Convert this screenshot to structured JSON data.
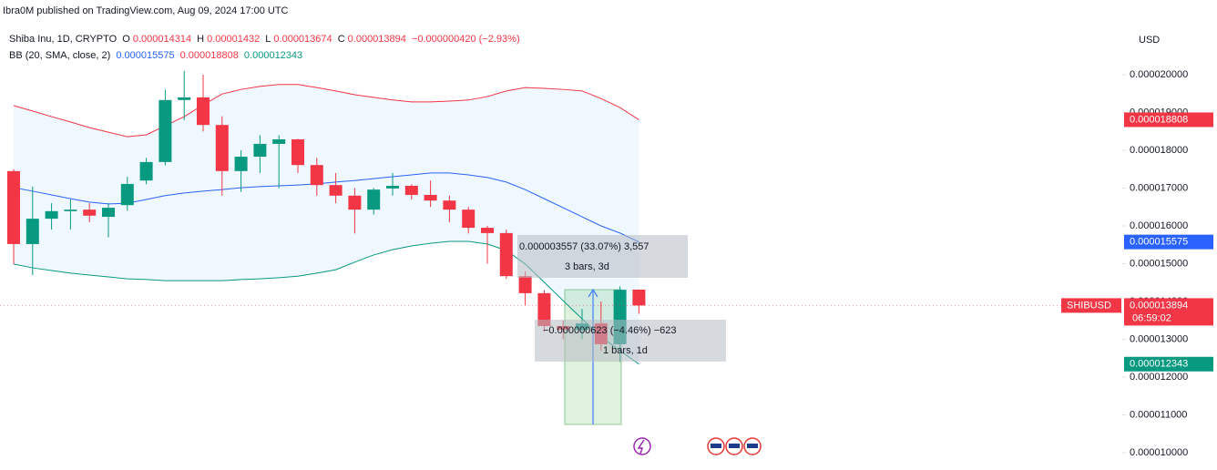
{
  "header": "Ibra0M published on TradingView.com, Aug 09, 2024 17:00 UTC",
  "chart_data": {
    "type": "candlestick",
    "symbol": "Shiba Inu, 1D, CRYPTO",
    "ohlc_letters": [
      "O",
      "H",
      "L",
      "C"
    ],
    "change": "−0.000000420 (−2.93%)",
    "indicator": "BB (20, SMA, close, 2)",
    "currency": "USD",
    "up_color": "#089981",
    "down_color": "#f23645",
    "open": [
      1.745e-05,
      1.552e-05,
      1.619e-05,
      1.639e-05,
      1.643e-05,
      1.624e-05,
      1.655e-05,
      1.72e-05,
      1.769e-05,
      1.933e-05,
      1.94e-05,
      1.867e-05,
      1.745e-05,
      1.783e-05,
      1.817e-05,
      1.829e-05,
      1.761e-05,
      1.708e-05,
      1.68e-05,
      1.643e-05,
      1.699e-05,
      1.706e-05,
      1.682e-05,
      1.667e-05,
      1.643e-05,
      1.595e-05,
      1.581e-05,
      1.467e-05,
      1.422e-05,
      1.335e-05,
      1.325e-05,
      1.342e-05,
      1.287e-05,
      1.4314e-05
    ],
    "high": [
      1.75e-05,
      1.704e-05,
      1.66e-05,
      1.67e-05,
      1.66e-05,
      1.66e-05,
      1.73e-05,
      1.78e-05,
      1.96e-05,
      2.01e-05,
      2e-05,
      1.89e-05,
      1.8e-05,
      1.84e-05,
      1.84e-05,
      1.83e-05,
      1.78e-05,
      1.74e-05,
      1.7e-05,
      1.7e-05,
      1.74e-05,
      1.71e-05,
      1.72e-05,
      1.68e-05,
      1.65e-05,
      1.6e-05,
      1.59e-05,
      1.48e-05,
      1.43e-05,
      1.35e-05,
      1.38e-05,
      1.4e-05,
      1.44e-05,
      1.432e-05
    ],
    "low": [
      1.499e-05,
      1.47e-05,
      1.59e-05,
      1.59e-05,
      1.61e-05,
      1.57e-05,
      1.64e-05,
      1.71e-05,
      1.76e-05,
      1.88e-05,
      1.85e-05,
      1.68e-05,
      1.69e-05,
      1.74e-05,
      1.7e-05,
      1.74e-05,
      1.68e-05,
      1.66e-05,
      1.58e-05,
      1.63e-05,
      1.68e-05,
      1.67e-05,
      1.65e-05,
      1.61e-05,
      1.58e-05,
      1.5e-05,
      1.46e-05,
      1.39e-05,
      1.32e-05,
      1.3e-05,
      1.3e-05,
      1.27e-05,
      1.24e-05,
      1.3674e-05
    ],
    "close": [
      1.552e-05,
      1.619e-05,
      1.639e-05,
      1.643e-05,
      1.627e-05,
      1.648e-05,
      1.711e-05,
      1.769e-05,
      1.933e-05,
      1.94e-05,
      1.867e-05,
      1.745e-05,
      1.783e-05,
      1.817e-05,
      1.829e-05,
      1.761e-05,
      1.708e-05,
      1.68e-05,
      1.643e-05,
      1.696e-05,
      1.706e-05,
      1.682e-05,
      1.667e-05,
      1.643e-05,
      1.595e-05,
      1.581e-05,
      1.467e-05,
      1.422e-05,
      1.335e-05,
      1.325e-05,
      1.342e-05,
      1.287e-05,
      1.431e-05,
      1.3894e-05
    ],
    "overlays": [
      {
        "color": "#2962ff",
        "values": [
          1.701e-05,
          1.692e-05,
          1.682e-05,
          1.672e-05,
          1.663e-05,
          1.658e-05,
          1.66e-05,
          1.67e-05,
          1.68e-05,
          1.687e-05,
          1.692e-05,
          1.696e-05,
          1.701e-05,
          1.704e-05,
          1.706e-05,
          1.708e-05,
          1.711e-05,
          1.716e-05,
          1.72e-05,
          1.725e-05,
          1.73e-05,
          1.735e-05,
          1.74e-05,
          1.74e-05,
          1.735e-05,
          1.728e-05,
          1.716e-05,
          1.696e-05,
          1.672e-05,
          1.648e-05,
          1.624e-05,
          1.6e-05,
          1.581e-05,
          1.5575e-05
        ]
      },
      {
        "color": "#f23645",
        "values": [
          1.918e-05,
          1.904e-05,
          1.889e-05,
          1.875e-05,
          1.86e-05,
          1.848e-05,
          1.836e-05,
          1.841e-05,
          1.865e-05,
          1.889e-05,
          1.92e-05,
          1.949e-05,
          1.961e-05,
          1.969e-05,
          1.974e-05,
          1.974e-05,
          1.966e-05,
          1.957e-05,
          1.947e-05,
          1.94e-05,
          1.933e-05,
          1.928e-05,
          1.928e-05,
          1.93e-05,
          1.933e-05,
          1.942e-05,
          1.957e-05,
          1.966e-05,
          1.964e-05,
          1.961e-05,
          1.957e-05,
          1.937e-05,
          1.913e-05,
          1.8808e-05
        ]
      },
      {
        "color": "#089981",
        "values": [
          1.499e-05,
          1.489e-05,
          1.482e-05,
          1.475e-05,
          1.47e-05,
          1.465e-05,
          1.46e-05,
          1.458e-05,
          1.455e-05,
          1.455e-05,
          1.455e-05,
          1.455e-05,
          1.458e-05,
          1.46e-05,
          1.463e-05,
          1.467e-05,
          1.475e-05,
          1.484e-05,
          1.504e-05,
          1.523e-05,
          1.537e-05,
          1.547e-05,
          1.554e-05,
          1.559e-05,
          1.559e-05,
          1.552e-05,
          1.535e-05,
          1.499e-05,
          1.451e-05,
          1.402e-05,
          1.354e-05,
          1.306e-05,
          1.27e-05,
          1.2343e-05
        ]
      }
    ],
    "band_fill": "rgba(33,150,243,0.07)",
    "ylim": [
      9.542e-06,
      2.1976e-05
    ],
    "yticks": [
      {
        "value": 1e-05,
        "label": "0.000010000"
      },
      {
        "value": 1.1e-05,
        "label": "0.000011000"
      },
      {
        "value": 1.2e-05,
        "label": "0.000012000"
      },
      {
        "value": 1.3e-05,
        "label": "0.000013000"
      },
      {
        "value": 1.4e-05,
        "label": "0.000014000"
      },
      {
        "value": 1.5e-05,
        "label": "0.000015000"
      },
      {
        "value": 1.6e-05,
        "label": "0.000016000"
      },
      {
        "value": 1.7e-05,
        "label": "0.000017000"
      },
      {
        "value": 1.8e-05,
        "label": "0.000018000"
      },
      {
        "value": 1.9e-05,
        "label": "0.000019000"
      },
      {
        "value": 2e-05,
        "label": "0.000020000"
      }
    ],
    "grid": false,
    "price_tag": "SHIBUSD",
    "countdown": "06:59:02",
    "measure_labels": [
      "0.000003557 (33.07%) 3,557",
      "3 bars, 3d",
      "−0.000000623 (−4.46%) −623",
      "1 bars, 1d"
    ]
  }
}
